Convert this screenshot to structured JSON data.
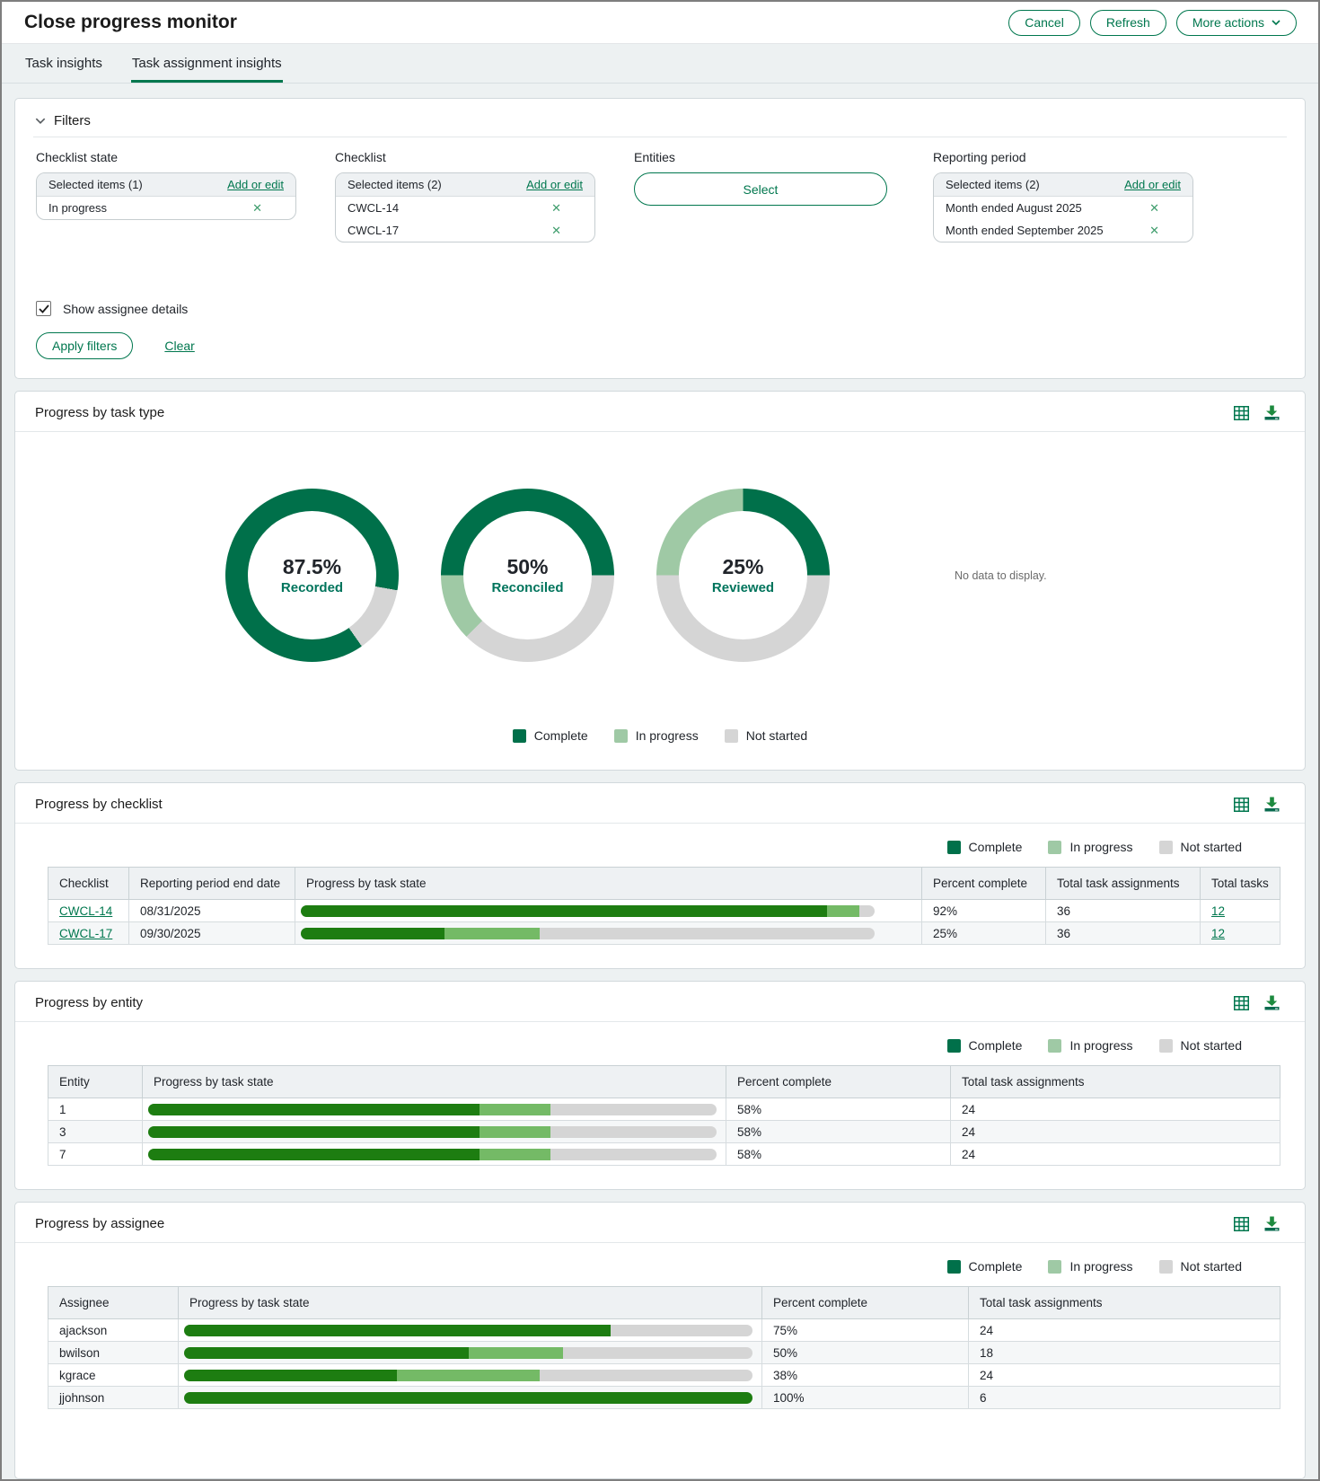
{
  "colors": {
    "accent_green": "#00774e",
    "donut_complete": "#00704a",
    "donut_in_progress": "#9fc9a5",
    "bar_complete": "#1d7d11",
    "bar_in_progress": "#74ba66",
    "not_started": "#d5d5d5"
  },
  "header": {
    "title": "Close progress monitor",
    "cancel_label": "Cancel",
    "refresh_label": "Refresh",
    "more_actions_label": "More actions"
  },
  "tabs": [
    {
      "label": "Task insights",
      "active": false
    },
    {
      "label": "Task assignment insights",
      "active": true
    }
  ],
  "filters": {
    "title": "Filters",
    "groups": [
      {
        "label": "Checklist state",
        "type": "list",
        "header": "Selected items (1)",
        "action": "Add or edit",
        "items": [
          "In progress"
        ]
      },
      {
        "label": "Checklist",
        "type": "list",
        "header": "Selected items (2)",
        "action": "Add or edit",
        "items": [
          "CWCL-14",
          "CWCL-17"
        ]
      },
      {
        "label": "Entities",
        "type": "button",
        "button_label": "Select"
      },
      {
        "label": "Reporting period",
        "type": "list",
        "header": "Selected items (2)",
        "action": "Add or edit",
        "items": [
          "Month ended August 2025",
          "Month ended September 2025"
        ]
      }
    ],
    "show_assignee_details": {
      "label": "Show assignee details",
      "checked": true
    },
    "apply_label": "Apply filters",
    "clear_label": "Clear"
  },
  "legend": [
    {
      "state": "complete",
      "label": "Complete"
    },
    {
      "state": "in_progress",
      "label": "In progress"
    },
    {
      "state": "not_started",
      "label": "Not started"
    }
  ],
  "panels": {
    "task_type": {
      "title": "Progress by task type",
      "no_data_text": "No data to display."
    },
    "checklist": {
      "title": "Progress by checklist",
      "columns": [
        "Checklist",
        "Reporting period end date",
        "Progress by task state",
        "Percent complete",
        "Total task assignments",
        "Total tasks"
      ],
      "rows": [
        {
          "checklist": "CWCL-14",
          "end_date": "08/31/2025",
          "bar": {
            "complete": 91.7,
            "in_progress": 5.6,
            "not_started": 2.7
          },
          "percent": "92%",
          "assignments": "36",
          "tasks": "12"
        },
        {
          "checklist": "CWCL-17",
          "end_date": "09/30/2025",
          "bar": {
            "complete": 25,
            "in_progress": 16.7,
            "not_started": 58.3
          },
          "percent": "25%",
          "assignments": "36",
          "tasks": "12"
        }
      ]
    },
    "entity": {
      "title": "Progress by entity",
      "columns": [
        "Entity",
        "Progress by task state",
        "Percent complete",
        "Total task assignments"
      ],
      "rows": [
        {
          "entity": "1",
          "bar": {
            "complete": 58.3,
            "in_progress": 12.5,
            "not_started": 29.2
          },
          "percent": "58%",
          "assignments": "24"
        },
        {
          "entity": "3",
          "bar": {
            "complete": 58.3,
            "in_progress": 12.5,
            "not_started": 29.2
          },
          "percent": "58%",
          "assignments": "24"
        },
        {
          "entity": "7",
          "bar": {
            "complete": 58.3,
            "in_progress": 12.5,
            "not_started": 29.2
          },
          "percent": "58%",
          "assignments": "24"
        }
      ]
    },
    "assignee": {
      "title": "Progress by assignee",
      "columns": [
        "Assignee",
        "Progress by task state",
        "Percent complete",
        "Total task assignments"
      ],
      "rows": [
        {
          "assignee": "ajackson",
          "bar": {
            "complete": 75,
            "in_progress": 0,
            "not_started": 25
          },
          "percent": "75%",
          "assignments": "24"
        },
        {
          "assignee": "bwilson",
          "bar": {
            "complete": 50,
            "in_progress": 16.7,
            "not_started": 33.3
          },
          "percent": "50%",
          "assignments": "18"
        },
        {
          "assignee": "kgrace",
          "bar": {
            "complete": 37.5,
            "in_progress": 25,
            "not_started": 37.5
          },
          "percent": "38%",
          "assignments": "24"
        },
        {
          "assignee": "jjohnson",
          "bar": {
            "complete": 100,
            "in_progress": 0,
            "not_started": 0
          },
          "percent": "100%",
          "assignments": "6"
        }
      ]
    }
  },
  "chart_data": [
    {
      "type": "donut",
      "title": "Progress by task type",
      "legend": [
        "Complete",
        "In progress",
        "Not started"
      ],
      "donuts": [
        {
          "center_value": "87.5%",
          "center_label": "Recorded",
          "start_angle": 145,
          "order": [
            "complete",
            "not_started"
          ],
          "segments": {
            "complete": 87.5,
            "in_progress": 0,
            "not_started": 12.5
          }
        },
        {
          "center_value": "50%",
          "center_label": "Reconciled",
          "start_angle": 225,
          "order": [
            "in_progress",
            "complete",
            "not_started"
          ],
          "segments": {
            "complete": 50,
            "in_progress": 12.5,
            "not_started": 37.5
          }
        },
        {
          "center_value": "25%",
          "center_label": "Reviewed",
          "start_angle": 270,
          "order": [
            "in_progress",
            "complete",
            "not_started"
          ],
          "segments": {
            "complete": 25,
            "in_progress": 25,
            "not_started": 50
          }
        }
      ]
    }
  ]
}
